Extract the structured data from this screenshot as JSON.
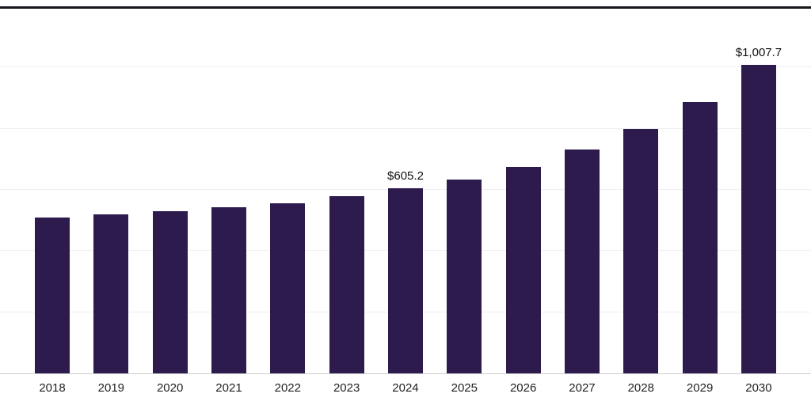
{
  "chart_data": {
    "type": "bar",
    "title": "",
    "xlabel": "",
    "ylabel": "",
    "categories": [
      "2018",
      "2019",
      "2020",
      "2021",
      "2022",
      "2023",
      "2024",
      "2025",
      "2026",
      "2027",
      "2028",
      "2029",
      "2030"
    ],
    "values": [
      510,
      520,
      529,
      542,
      557,
      580,
      605.2,
      634,
      676,
      733,
      800,
      886,
      1007.7
    ],
    "data_labels": [
      "",
      "",
      "",
      "",
      "",
      "",
      "$605.2",
      "",
      "",
      "",
      "",
      "",
      "$1,007.7"
    ],
    "ylim": [
      0,
      1200
    ],
    "gridlines": [
      200,
      400,
      600,
      800,
      1000
    ],
    "grid": "on",
    "legend": "none",
    "bar_color": "#2d1b4e",
    "gridline_color": "#efefef",
    "axis_line_color": "#cccccc",
    "top_border_color": "#16161d",
    "label_color": "#111111",
    "tick_label_color": "#222222"
  }
}
